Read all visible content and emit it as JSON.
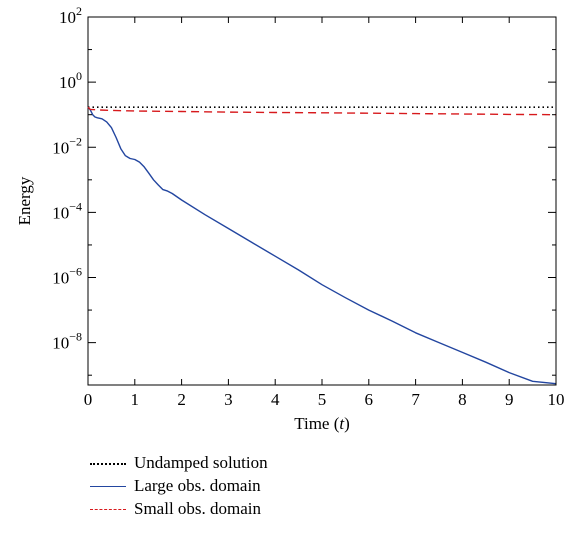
{
  "chart_data": {
    "type": "line",
    "title": "",
    "xlabel": "Time",
    "xlabel_var": "t",
    "ylabel": "Energy",
    "xlim": [
      0,
      10
    ],
    "ylim": [
      5e-10,
      100
    ],
    "yscale": "log",
    "xticks": [
      "0",
      "1",
      "2",
      "3",
      "4",
      "5",
      "6",
      "7",
      "8",
      "9",
      "10"
    ],
    "yticks": [
      {
        "base": "10",
        "exp": "2"
      },
      {
        "base": "10",
        "exp": "0"
      },
      {
        "base": "10",
        "exp": "−2"
      },
      {
        "base": "10",
        "exp": "−4"
      },
      {
        "base": "10",
        "exp": "−6"
      },
      {
        "base": "10",
        "exp": "−8"
      }
    ],
    "grid": false,
    "legend_position": "below",
    "series": [
      {
        "name": "Undamped solution",
        "color": "#000000",
        "style": "dotted",
        "x": [
          0,
          10
        ],
        "y": [
          0.17,
          0.17
        ]
      },
      {
        "name": "Large obs. domain",
        "color": "#2346a0",
        "style": "solid",
        "x": [
          0,
          0.05,
          0.1,
          0.15,
          0.2,
          0.3,
          0.4,
          0.5,
          0.6,
          0.7,
          0.8,
          0.9,
          1.0,
          1.1,
          1.2,
          1.3,
          1.4,
          1.5,
          1.6,
          1.7,
          1.8,
          2.0,
          2.5,
          3.0,
          3.5,
          4.0,
          4.5,
          5.0,
          5.5,
          6.0,
          6.5,
          7.0,
          7.5,
          8.0,
          8.5,
          9.0,
          9.5,
          10.0
        ],
        "y": [
          0.17,
          0.14,
          0.1,
          0.085,
          0.08,
          0.075,
          0.06,
          0.04,
          0.02,
          0.009,
          0.0055,
          0.0045,
          0.0042,
          0.0035,
          0.0025,
          0.0016,
          0.001,
          0.0007,
          0.0005,
          0.00045,
          0.00038,
          0.00024,
          8.5e-05,
          3.2e-05,
          1.2e-05,
          4.5e-06,
          1.7e-06,
          6e-07,
          2.4e-07,
          1e-07,
          4.6e-08,
          2e-08,
          1e-08,
          5e-09,
          2.5e-09,
          1.2e-09,
          6.5e-10,
          5.5e-10
        ]
      },
      {
        "name": "Small obs. domain",
        "color": "#d7191c",
        "style": "dashed",
        "x": [
          0,
          0.05,
          0.2,
          0.5,
          1,
          2,
          3,
          4,
          5,
          6,
          7,
          8,
          9,
          10
        ],
        "y": [
          0.17,
          0.145,
          0.14,
          0.135,
          0.13,
          0.125,
          0.12,
          0.117,
          0.114,
          0.111,
          0.108,
          0.105,
          0.102,
          0.1
        ]
      }
    ]
  }
}
